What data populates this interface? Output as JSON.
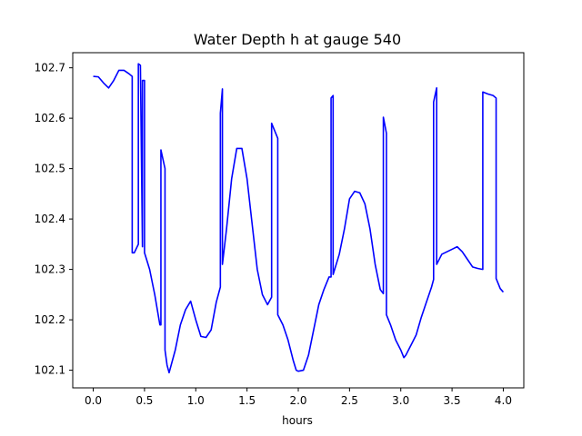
{
  "chart_data": {
    "type": "line",
    "title": "Water Depth h at gauge 540",
    "xlabel": "hours",
    "ylabel": "",
    "xlim": [
      -0.2,
      4.2
    ],
    "ylim": [
      102.065,
      102.73
    ],
    "xticks": [
      0.0,
      0.5,
      1.0,
      1.5,
      2.0,
      2.5,
      3.0,
      3.5,
      4.0
    ],
    "xtick_labels": [
      "0.0",
      "0.5",
      "1.0",
      "1.5",
      "2.0",
      "2.5",
      "3.0",
      "3.5",
      "4.0"
    ],
    "yticks": [
      102.1,
      102.2,
      102.3,
      102.4,
      102.5,
      102.6,
      102.7
    ],
    "ytick_labels": [
      "102.1",
      "102.2",
      "102.3",
      "102.4",
      "102.5",
      "102.6",
      "102.7"
    ],
    "grid": false,
    "colors": {
      "series": "#0000ff"
    },
    "series": [
      {
        "x": [
          0.0,
          0.05,
          0.1,
          0.15,
          0.2,
          0.25,
          0.3,
          0.35,
          0.38,
          0.38,
          0.4,
          0.44,
          0.44,
          0.46,
          0.48,
          0.48,
          0.5,
          0.5,
          0.55,
          0.6,
          0.65,
          0.66,
          0.66,
          0.7,
          0.7,
          0.72,
          0.74,
          0.8,
          0.85,
          0.9,
          0.95,
          1.0,
          1.05,
          1.1,
          1.15,
          1.2,
          1.24,
          1.24,
          1.26,
          1.26,
          1.3,
          1.35,
          1.4,
          1.45,
          1.5,
          1.55,
          1.6,
          1.65,
          1.7,
          1.74,
          1.74,
          1.8,
          1.8,
          1.85,
          1.9,
          1.95,
          1.98,
          2.0,
          2.05,
          2.1,
          2.15,
          2.2,
          2.25,
          2.3,
          2.32,
          2.32,
          2.34,
          2.34,
          2.4,
          2.45,
          2.5,
          2.55,
          2.6,
          2.65,
          2.7,
          2.75,
          2.8,
          2.83,
          2.83,
          2.86,
          2.86,
          2.9,
          2.95,
          3.0,
          3.03,
          3.05,
          3.1,
          3.15,
          3.2,
          3.25,
          3.3,
          3.32,
          3.32,
          3.35,
          3.35,
          3.4,
          3.45,
          3.5,
          3.55,
          3.6,
          3.65,
          3.7,
          3.75,
          3.8,
          3.8,
          3.85,
          3.9,
          3.93,
          3.93,
          3.97,
          4.0
        ],
        "y": [
          102.683,
          102.682,
          102.67,
          102.66,
          102.675,
          102.695,
          102.695,
          102.688,
          102.683,
          102.333,
          102.333,
          102.35,
          102.708,
          102.705,
          102.345,
          102.675,
          102.675,
          102.333,
          102.3,
          102.25,
          102.19,
          102.19,
          102.537,
          102.5,
          102.14,
          102.11,
          102.095,
          102.14,
          102.19,
          102.22,
          102.237,
          102.2,
          102.167,
          102.165,
          102.18,
          102.235,
          102.265,
          102.61,
          102.658,
          102.31,
          102.38,
          102.48,
          102.54,
          102.54,
          102.48,
          102.39,
          102.3,
          102.25,
          102.23,
          102.245,
          102.59,
          102.56,
          102.21,
          102.19,
          102.16,
          102.12,
          102.1,
          102.098,
          102.1,
          102.13,
          102.18,
          102.23,
          102.26,
          102.285,
          102.285,
          102.64,
          102.645,
          102.29,
          102.33,
          102.38,
          102.44,
          102.455,
          102.452,
          102.43,
          102.38,
          102.31,
          102.26,
          102.252,
          102.602,
          102.57,
          102.21,
          102.19,
          102.16,
          102.14,
          102.125,
          102.13,
          102.15,
          102.17,
          102.205,
          102.235,
          102.265,
          102.28,
          102.632,
          102.66,
          102.31,
          102.33,
          102.335,
          102.34,
          102.345,
          102.335,
          102.32,
          102.305,
          102.302,
          102.3,
          102.652,
          102.648,
          102.645,
          102.64,
          102.282,
          102.262,
          102.255
        ]
      }
    ]
  }
}
